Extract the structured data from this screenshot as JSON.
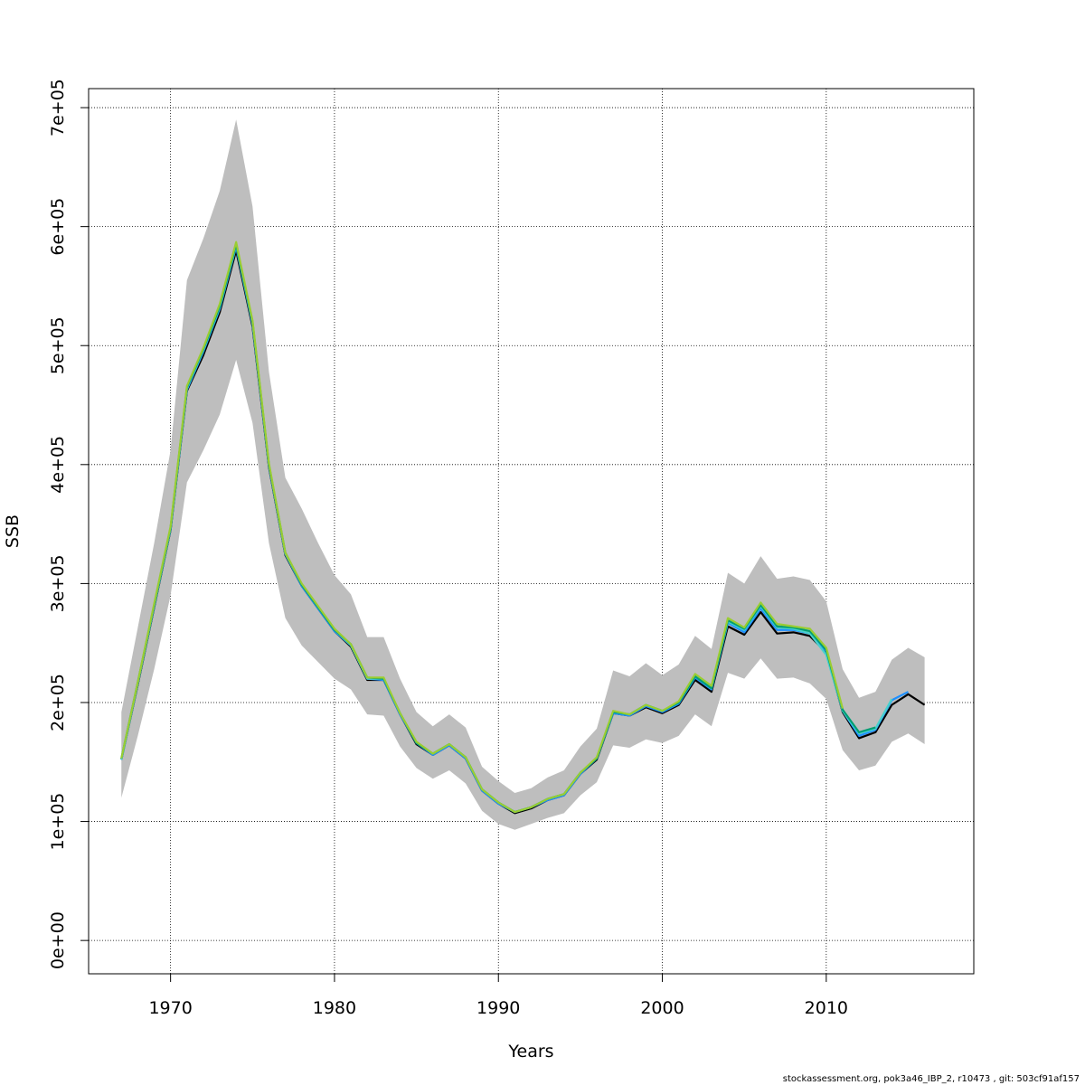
{
  "chart_data": {
    "type": "line",
    "title": "",
    "xlabel": "Years",
    "ylabel": "SSB",
    "xlim": [
      1965,
      2019
    ],
    "ylim": [
      -28000,
      716000
    ],
    "xticks": [
      1970,
      1980,
      1990,
      2000,
      2010
    ],
    "xtick_labels": [
      "1970",
      "1980",
      "1990",
      "2000",
      "2010"
    ],
    "yticks": [
      0,
      100000,
      200000,
      300000,
      400000,
      500000,
      600000,
      700000
    ],
    "ytick_labels": [
      "0e+00",
      "1e+05",
      "2e+05",
      "3e+05",
      "4e+05",
      "5e+05",
      "6e+05",
      "7e+05"
    ],
    "grid": true,
    "band": {
      "color": "#bebebe",
      "x": [
        1967,
        1968,
        1969,
        1970,
        1971,
        1972,
        1973,
        1974,
        1975,
        1976,
        1977,
        1978,
        1979,
        1980,
        1981,
        1982,
        1983,
        1984,
        1985,
        1986,
        1987,
        1988,
        1989,
        1990,
        1991,
        1992,
        1993,
        1994,
        1995,
        1996,
        1997,
        1998,
        1999,
        2000,
        2001,
        2002,
        2003,
        2004,
        2005,
        2006,
        2007,
        2008,
        2009,
        2010,
        2011,
        2012,
        2013,
        2014,
        2015,
        2016
      ],
      "lower": [
        120000,
        172000,
        228000,
        290000,
        385000,
        412000,
        442000,
        488000,
        435000,
        334000,
        271000,
        248000,
        234000,
        220000,
        211000,
        190000,
        189000,
        163000,
        145000,
        136000,
        143000,
        132000,
        109000,
        98000,
        93000,
        98000,
        103000,
        107000,
        122000,
        133000,
        164000,
        162000,
        169000,
        166000,
        172000,
        190000,
        180000,
        225000,
        220000,
        237000,
        220000,
        221000,
        216000,
        203000,
        160000,
        143000,
        147000,
        167000,
        174000,
        165000
      ],
      "upper": [
        192000,
        263000,
        334000,
        412000,
        555000,
        590000,
        630000,
        690000,
        617000,
        478000,
        389000,
        363000,
        334000,
        307000,
        291000,
        255000,
        255000,
        220000,
        192000,
        180000,
        190000,
        179000,
        146000,
        134000,
        124000,
        128000,
        137000,
        143000,
        163000,
        178000,
        227000,
        222000,
        233000,
        223000,
        232000,
        256000,
        245000,
        309000,
        300000,
        323000,
        304000,
        306000,
        303000,
        285000,
        228000,
        204000,
        209000,
        236000,
        246000,
        238000
      ]
    },
    "series": [
      {
        "color": "#000000",
        "x": [
          1967,
          1968,
          1969,
          1970,
          1971,
          1972,
          1973,
          1974,
          1975,
          1976,
          1977,
          1978,
          1979,
          1980,
          1981,
          1982,
          1983,
          1984,
          1985,
          1986,
          1987,
          1988,
          1989,
          1990,
          1991,
          1992,
          1993,
          1994,
          1995,
          1996,
          1997,
          1998,
          1999,
          2000,
          2001,
          2002,
          2003,
          2004,
          2005,
          2006,
          2007,
          2008,
          2009,
          2010,
          2011,
          2012,
          2013,
          2014,
          2015,
          2016
        ],
        "values": [
          152000,
          215000,
          280000,
          345000,
          462000,
          492000,
          528000,
          580000,
          516000,
          398000,
          324000,
          298000,
          279000,
          260000,
          247000,
          219000,
          219000,
          190000,
          165000,
          156000,
          164000,
          153000,
          126000,
          115000,
          107000,
          111000,
          118000,
          122000,
          140000,
          152000,
          191000,
          189000,
          196000,
          191000,
          198000,
          219000,
          209000,
          264000,
          257000,
          276000,
          258000,
          259000,
          256000,
          242000,
          192000,
          170000,
          175000,
          198000,
          207000,
          198000
        ]
      },
      {
        "color": "#1e90ff",
        "x": [
          1967,
          1968,
          1969,
          1970,
          1971,
          1972,
          1973,
          1974,
          1975,
          1976,
          1977,
          1978,
          1979,
          1980,
          1981,
          1982,
          1983,
          1984,
          1985,
          1986,
          1987,
          1988,
          1989,
          1990,
          1991,
          1992,
          1993,
          1994,
          1995,
          1996,
          1997,
          1998,
          1999,
          2000,
          2001,
          2002,
          2003,
          2004,
          2005,
          2006,
          2007,
          2008,
          2009,
          2010,
          2011,
          2012,
          2013,
          2014,
          2015
        ],
        "values": [
          152000,
          216000,
          281000,
          346000,
          463000,
          495000,
          531000,
          583000,
          518000,
          399000,
          325000,
          298000,
          279000,
          260000,
          248000,
          220000,
          219000,
          190000,
          166000,
          156000,
          164000,
          153000,
          126000,
          115000,
          108000,
          112000,
          118000,
          122000,
          140000,
          153000,
          191000,
          189000,
          197000,
          192000,
          199000,
          221000,
          211000,
          267000,
          259000,
          279000,
          261000,
          261000,
          258000,
          243000,
          193000,
          172000,
          177000,
          202000,
          209000
        ]
      },
      {
        "color": "#48d1cc",
        "x": [
          1967,
          1968,
          1969,
          1970,
          1971,
          1972,
          1973,
          1974,
          1975,
          1976,
          1977,
          1978,
          1979,
          1980,
          1981,
          1982,
          1983,
          1984,
          1985,
          1986,
          1987,
          1988,
          1989,
          1990,
          1991,
          1992,
          1993,
          1994,
          1995,
          1996,
          1997,
          1998,
          1999,
          2000,
          2001,
          2002,
          2003,
          2004,
          2005,
          2006,
          2007,
          2008,
          2009,
          2010,
          2011,
          2012,
          2013,
          2014
        ],
        "values": [
          152000,
          216000,
          281000,
          346000,
          464000,
          496000,
          532000,
          584000,
          519000,
          400000,
          325000,
          299000,
          280000,
          261000,
          248000,
          220000,
          220000,
          191000,
          166000,
          157000,
          165000,
          154000,
          127000,
          116000,
          108000,
          112000,
          119000,
          123000,
          141000,
          153000,
          192000,
          190000,
          198000,
          193000,
          200000,
          222000,
          212000,
          268000,
          261000,
          281000,
          263000,
          262000,
          258000,
          240000,
          193000,
          174000,
          178000,
          203000
        ]
      },
      {
        "color": "#009e73",
        "x": [
          1967,
          1968,
          1969,
          1970,
          1971,
          1972,
          1973,
          1974,
          1975,
          1976,
          1977,
          1978,
          1979,
          1980,
          1981,
          1982,
          1983,
          1984,
          1985,
          1986,
          1987,
          1988,
          1989,
          1990,
          1991,
          1992,
          1993,
          1994,
          1995,
          1996,
          1997,
          1998,
          1999,
          2000,
          2001,
          2002,
          2003,
          2004,
          2005,
          2006,
          2007,
          2008,
          2009,
          2010,
          2011,
          2012,
          2013
        ],
        "values": [
          153000,
          217000,
          282000,
          347000,
          465000,
          497000,
          533000,
          585000,
          520000,
          400000,
          326000,
          299000,
          280000,
          261000,
          249000,
          221000,
          220000,
          191000,
          166000,
          157000,
          165000,
          154000,
          127000,
          116000,
          108000,
          112000,
          119000,
          123000,
          141000,
          153000,
          192000,
          190000,
          198000,
          193000,
          200000,
          222000,
          212000,
          269000,
          262000,
          282000,
          264000,
          263000,
          260000,
          244000,
          194000,
          175000,
          179000
        ]
      },
      {
        "color": "#9acd32",
        "x": [
          1967,
          1968,
          1969,
          1970,
          1971,
          1972,
          1973,
          1974,
          1975,
          1976,
          1977,
          1978,
          1979,
          1980,
          1981,
          1982,
          1983,
          1984,
          1985,
          1986,
          1987,
          1988,
          1989,
          1990,
          1991,
          1992,
          1993,
          1994,
          1995,
          1996,
          1997,
          1998,
          1999,
          2000,
          2001,
          2002,
          2003,
          2004,
          2005,
          2006,
          2007,
          2008,
          2009,
          2010,
          2011
        ],
        "values": [
          153000,
          217000,
          283000,
          348000,
          466000,
          498000,
          535000,
          587000,
          521000,
          401000,
          326000,
          300000,
          281000,
          262000,
          249000,
          221000,
          221000,
          191000,
          167000,
          157000,
          165000,
          154000,
          127000,
          116000,
          108000,
          112000,
          119000,
          123000,
          141000,
          154000,
          193000,
          190000,
          198000,
          193000,
          201000,
          224000,
          214000,
          271000,
          263000,
          284000,
          266000,
          264000,
          262000,
          246000,
          195000
        ]
      }
    ]
  },
  "footer": "stockassessment.org, pok3a46_IBP_2, r10473 , git: 503cf91af157"
}
